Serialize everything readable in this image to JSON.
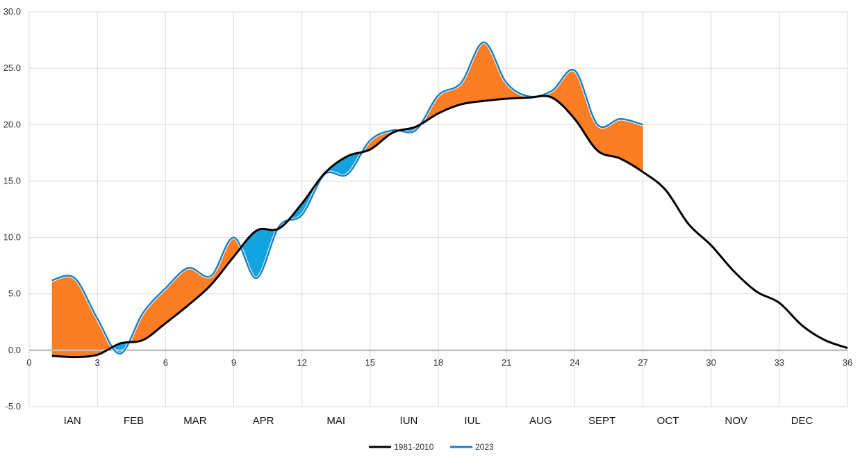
{
  "chart_data": {
    "type": "line",
    "xlim": [
      0,
      36
    ],
    "ylim": [
      -5,
      30
    ],
    "x_ticks": [
      0,
      3,
      6,
      9,
      12,
      15,
      18,
      21,
      24,
      27,
      30,
      33,
      36
    ],
    "y_ticks": [
      -5,
      0,
      5,
      10,
      15,
      20,
      25,
      30
    ],
    "y_tick_labels": [
      "-5.0",
      "0.0",
      "5.0",
      "10.0",
      "15.0",
      "20.0",
      "25.0",
      "30.0"
    ],
    "grid": true,
    "months": [
      "IAN",
      "FEB",
      "MAR",
      "APR",
      "MAI",
      "IUN",
      "IUL",
      "AUG",
      "SEPT",
      "OCT",
      "NOV",
      "DEC"
    ],
    "month_positions": [
      1.9,
      4.6,
      7.3,
      10.3,
      13.5,
      16.7,
      19.5,
      22.5,
      25.2,
      28.1,
      31.1,
      34.0
    ],
    "legend_position": "bottom",
    "series": [
      {
        "name": "1981-2010",
        "color": "#000000",
        "x": [
          1,
          2,
          3,
          4,
          5,
          6,
          7,
          8,
          9,
          10,
          11,
          12,
          13,
          14,
          15,
          16,
          17,
          18,
          19,
          20,
          21,
          22,
          23,
          24,
          25,
          26,
          27,
          28,
          29,
          30,
          31,
          32,
          33,
          34,
          35,
          36
        ],
        "values": [
          -0.5,
          -0.6,
          -0.4,
          0.6,
          0.9,
          2.4,
          4.0,
          5.8,
          8.3,
          10.6,
          10.8,
          13.0,
          15.7,
          17.2,
          17.8,
          19.3,
          19.8,
          21.0,
          21.8,
          22.1,
          22.3,
          22.4,
          22.4,
          20.5,
          17.7,
          17.0,
          15.8,
          14.2,
          11.2,
          9.3,
          7.0,
          5.2,
          4.2,
          2.2,
          0.9,
          0.2
        ]
      },
      {
        "name": "2023",
        "color": "#1a7fc4",
        "x": [
          1,
          2,
          3,
          4,
          5,
          6,
          7,
          8,
          9,
          10,
          11,
          12,
          13,
          14,
          15,
          16,
          17,
          18,
          19,
          20,
          21,
          22,
          23,
          24,
          25,
          26,
          27
        ],
        "values": [
          6.2,
          6.4,
          2.8,
          -0.3,
          3.3,
          5.5,
          7.3,
          6.6,
          10.0,
          6.4,
          11.0,
          12.0,
          15.6,
          15.6,
          18.6,
          19.5,
          19.5,
          22.6,
          23.7,
          27.3,
          23.7,
          22.5,
          23.0,
          24.8,
          20.0,
          20.5,
          20.0
        ]
      }
    ],
    "fill_colors": {
      "warmer": "#fb7d24",
      "colder": "#13a3e0"
    }
  }
}
